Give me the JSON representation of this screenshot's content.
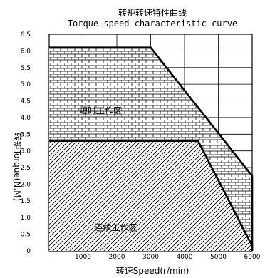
{
  "chart_data": {
    "type": "area",
    "title": "转矩转速特性曲线",
    "subtitle": "Torque speed characteristic curve",
    "xlabel": "转速Speed(r/min)",
    "ylabel": "转矩Torque(N.M)",
    "xlim": [
      0,
      6000
    ],
    "ylim": [
      0,
      6.5
    ],
    "x_ticks": [
      "1000",
      "2000",
      "3000",
      "4000",
      "5000",
      "6000"
    ],
    "y_ticks": [
      "0",
      "0.5",
      "1.0",
      "1.5",
      "2.0",
      "2.5",
      "3.0",
      "3.5",
      "4.0",
      "4.5",
      "5.0",
      "5.5",
      "6.0",
      "6.5"
    ],
    "grid": true,
    "series": [
      {
        "name": "短时工作区",
        "pattern": "brick-hatch",
        "x": [
          0,
          3000,
          6000
        ],
        "y": [
          6.1,
          6.1,
          2.25
        ]
      },
      {
        "name": "连续工作区",
        "pattern": "diagonal-hatch",
        "x": [
          0,
          4400,
          6000
        ],
        "y": [
          3.3,
          3.3,
          0.15
        ]
      }
    ]
  }
}
